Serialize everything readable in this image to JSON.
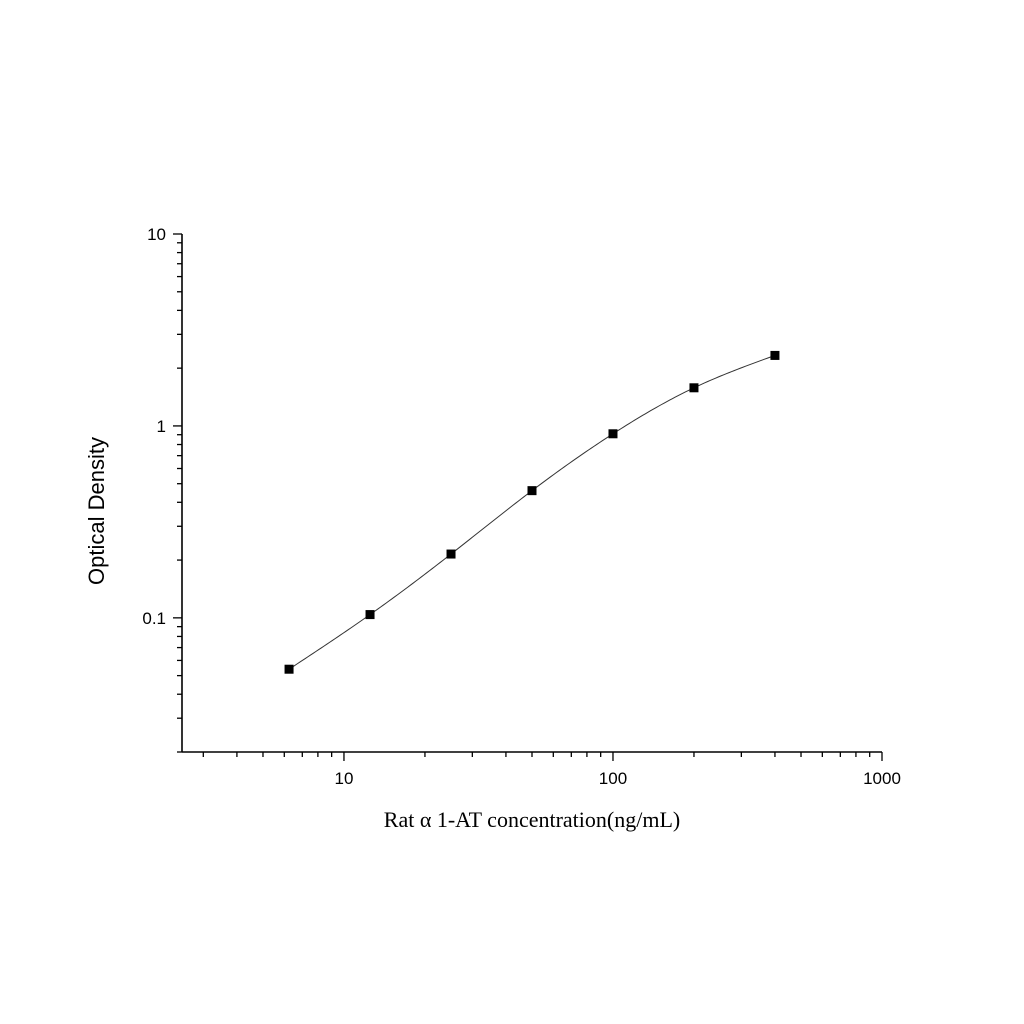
{
  "chart_data": {
    "type": "scatter",
    "title": "",
    "xlabel": "Rat α 1-AT concentration(ng/mL)",
    "ylabel": "Optical Density",
    "x_scale": "log",
    "y_scale": "log",
    "xlim": [
      2.5,
      1000
    ],
    "ylim": [
      0.02,
      10
    ],
    "x_ticks": [
      10,
      100,
      1000
    ],
    "x_tick_labels": [
      "10",
      "100",
      "1000"
    ],
    "y_ticks": [
      0.1,
      1,
      10
    ],
    "y_tick_labels": [
      "0.1",
      "1",
      "10"
    ],
    "grid": false,
    "legend": "none",
    "marker": "square",
    "fit_curve": true,
    "series": [
      {
        "x": [
          6.25,
          12.5,
          25,
          50,
          100,
          200,
          400
        ],
        "y": [
          0.054,
          0.104,
          0.215,
          0.46,
          0.91,
          1.58,
          2.33
        ]
      }
    ]
  }
}
